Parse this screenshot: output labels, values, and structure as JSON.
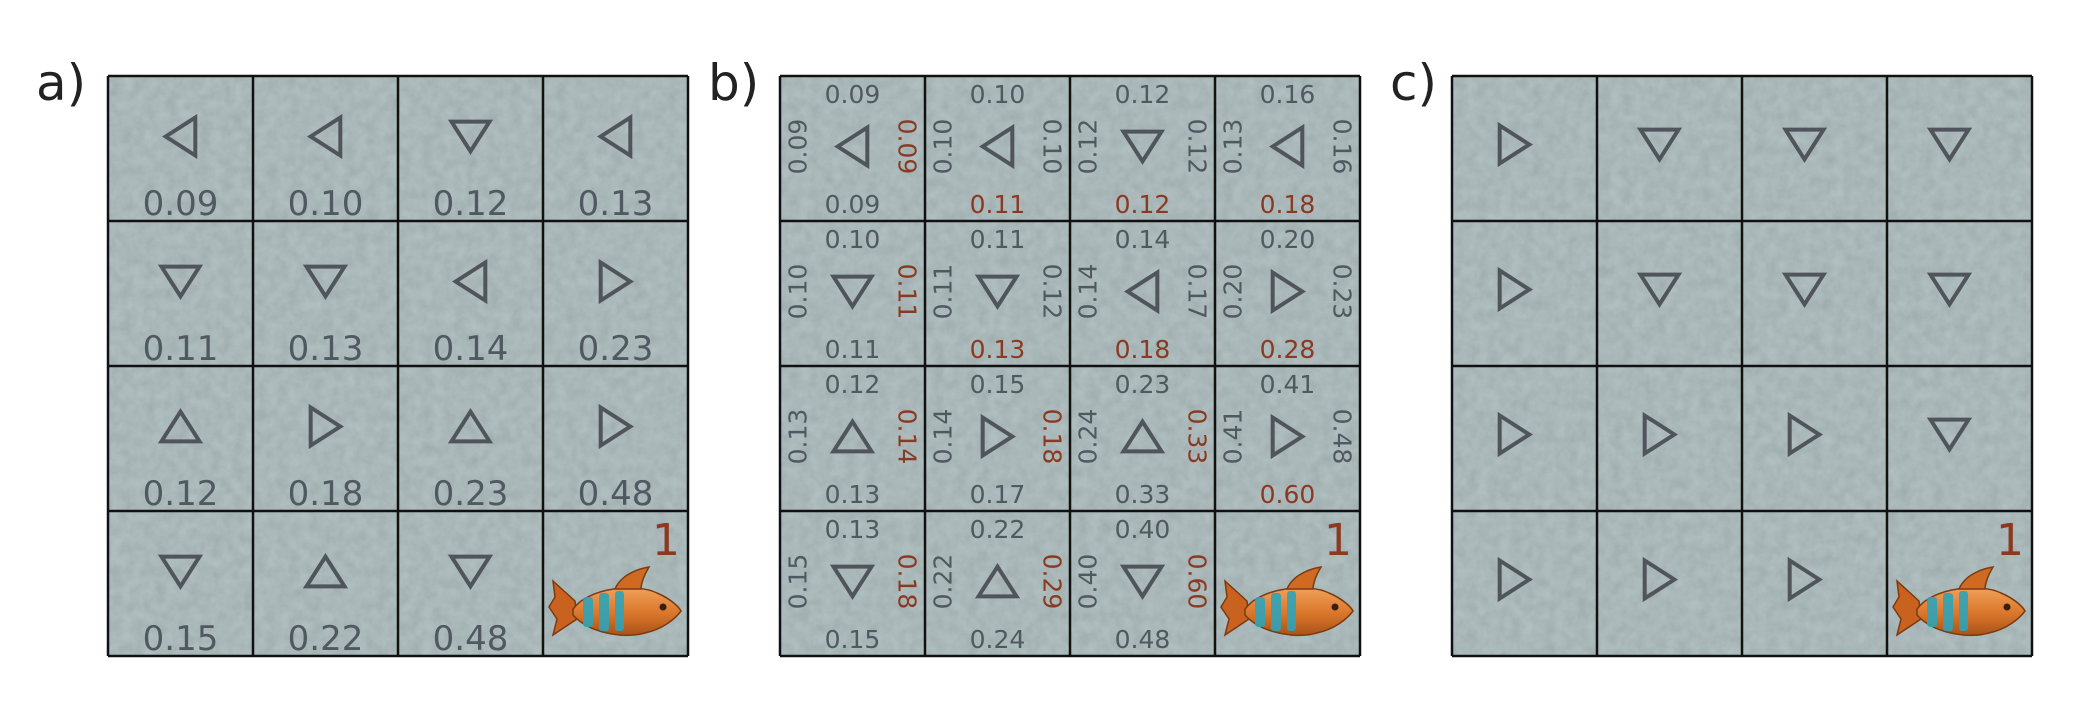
{
  "colors": {
    "cell_fill": "#b7c6c8",
    "grid_line": "#111111",
    "arrow": "#4f555b",
    "text_gray": "#505860",
    "text_red": "#8a3a22",
    "fish_body": "#d9762a",
    "fish_stripe": "#2fa3b8"
  },
  "panels": [
    {
      "label": "a)",
      "goal_value": "1",
      "cells": [
        {
          "arrow": "left",
          "value": "0.09"
        },
        {
          "arrow": "left",
          "value": "0.10"
        },
        {
          "arrow": "down",
          "value": "0.12"
        },
        {
          "arrow": "left",
          "value": "0.13"
        },
        {
          "arrow": "down",
          "value": "0.11"
        },
        {
          "arrow": "down",
          "value": "0.13"
        },
        {
          "arrow": "left",
          "value": "0.14"
        },
        {
          "arrow": "right",
          "value": "0.23"
        },
        {
          "arrow": "up",
          "value": "0.12"
        },
        {
          "arrow": "right",
          "value": "0.18"
        },
        {
          "arrow": "up",
          "value": "0.23"
        },
        {
          "arrow": "right",
          "value": "0.48"
        },
        {
          "arrow": "down",
          "value": "0.15"
        },
        {
          "arrow": "up",
          "value": "0.22"
        },
        {
          "arrow": "down",
          "value": "0.48"
        },
        {
          "goal": true,
          "icon": "fish-icon"
        }
      ]
    },
    {
      "label": "b)",
      "goal_value": "1",
      "cells": [
        {
          "arrow": "left",
          "up": "0.09",
          "left": "0.09",
          "right": "0.09",
          "down": "0.09",
          "highlight": "right"
        },
        {
          "arrow": "left",
          "up": "0.10",
          "left": "0.10",
          "right": "0.10",
          "down": "0.11",
          "highlight": "down"
        },
        {
          "arrow": "down",
          "up": "0.12",
          "left": "0.12",
          "right": "0.12",
          "down": "0.12",
          "highlight": "down"
        },
        {
          "arrow": "left",
          "up": "0.16",
          "left": "0.13",
          "right": "0.16",
          "down": "0.18",
          "highlight": "down"
        },
        {
          "arrow": "down",
          "up": "0.10",
          "left": "0.10",
          "right": "0.11",
          "down": "0.11",
          "highlight": "right"
        },
        {
          "arrow": "down",
          "up": "0.11",
          "left": "0.11",
          "right": "0.12",
          "down": "0.13",
          "highlight": "down"
        },
        {
          "arrow": "left",
          "up": "0.14",
          "left": "0.14",
          "right": "0.17",
          "down": "0.18",
          "highlight": "down"
        },
        {
          "arrow": "right",
          "up": "0.20",
          "left": "0.20",
          "right": "0.23",
          "down": "0.28",
          "highlight": "down"
        },
        {
          "arrow": "up",
          "up": "0.12",
          "left": "0.13",
          "right": "0.14",
          "down": "0.13",
          "highlight": "right"
        },
        {
          "arrow": "right",
          "up": "0.15",
          "left": "0.14",
          "right": "0.18",
          "down": "0.17",
          "highlight": "right"
        },
        {
          "arrow": "up",
          "up": "0.23",
          "left": "0.24",
          "right": "0.33",
          "down": "0.33",
          "highlight": "right"
        },
        {
          "arrow": "right",
          "up": "0.41",
          "left": "0.41",
          "right": "0.48",
          "down": "0.60",
          "highlight": "down"
        },
        {
          "arrow": "down",
          "up": "0.13",
          "left": "0.15",
          "right": "0.18",
          "down": "0.15",
          "highlight": "right"
        },
        {
          "arrow": "up",
          "up": "0.22",
          "left": "0.22",
          "right": "0.29",
          "down": "0.24",
          "highlight": "right"
        },
        {
          "arrow": "down",
          "up": "0.40",
          "left": "0.40",
          "right": "0.60",
          "down": "0.48",
          "highlight": "right"
        },
        {
          "goal": true,
          "icon": "fish-icon"
        }
      ]
    },
    {
      "label": "c)",
      "goal_value": "1",
      "cells": [
        {
          "arrow": "right"
        },
        {
          "arrow": "down"
        },
        {
          "arrow": "down"
        },
        {
          "arrow": "down"
        },
        {
          "arrow": "right"
        },
        {
          "arrow": "down"
        },
        {
          "arrow": "down"
        },
        {
          "arrow": "down"
        },
        {
          "arrow": "right"
        },
        {
          "arrow": "right"
        },
        {
          "arrow": "right"
        },
        {
          "arrow": "down"
        },
        {
          "arrow": "right"
        },
        {
          "arrow": "right"
        },
        {
          "arrow": "right"
        },
        {
          "goal": true,
          "icon": "fish-icon"
        }
      ]
    }
  ]
}
